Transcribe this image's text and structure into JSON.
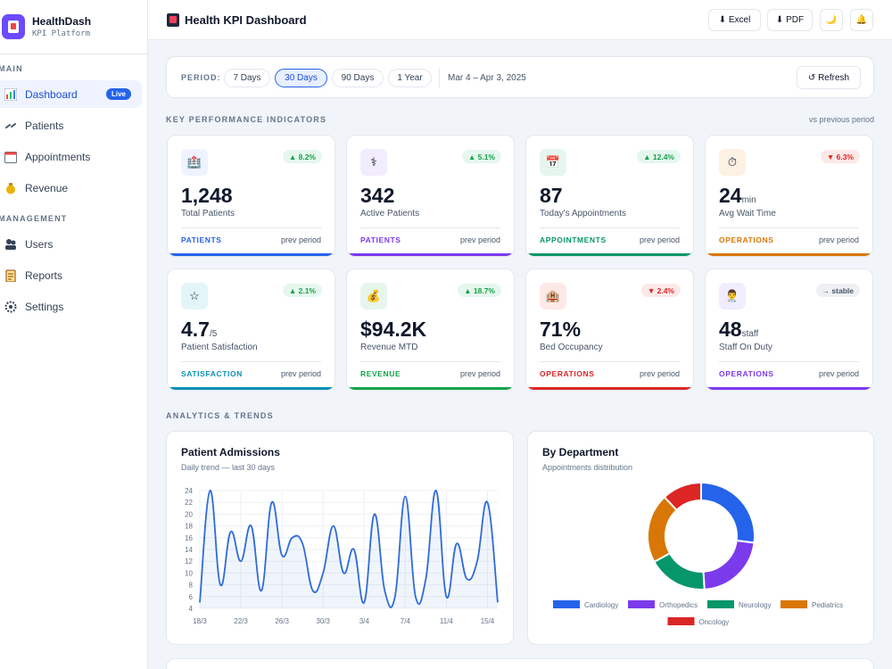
{
  "brand": {
    "name": "HealthDash",
    "subtitle": "KPI Platform"
  },
  "sidebar": {
    "sections": [
      "MAIN",
      "MANAGEMENT"
    ],
    "items": [
      {
        "label": "Dashboard",
        "icon": "chart-bar-icon",
        "badge": "Live"
      },
      {
        "label": "Patients",
        "icon": "patients-icon"
      },
      {
        "label": "Appointments",
        "icon": "calendar-icon"
      },
      {
        "label": "Revenue",
        "icon": "money-bag-icon"
      },
      {
        "label": "Users",
        "icon": "users-icon"
      },
      {
        "label": "Reports",
        "icon": "clipboard-icon"
      },
      {
        "label": "Settings",
        "icon": "gear-icon"
      }
    ]
  },
  "header": {
    "title": "Health KPI Dashboard",
    "excel_label": "⬇ Excel",
    "pdf_label": "⬇ PDF",
    "theme_icon": "🌙",
    "bell_icon": "🔔"
  },
  "period": {
    "label": "PERIOD:",
    "options": [
      "7 Days",
      "30 Days",
      "90 Days",
      "1 Year"
    ],
    "selected": "30 Days",
    "range": "Mar 4 – Apr 3, 2025",
    "refresh_label": "↺ Refresh"
  },
  "kpi_section": {
    "title": "KEY PERFORMANCE INDICATORS",
    "note": "vs previous period"
  },
  "kpis": [
    {
      "value": "1,248",
      "unit": "",
      "label": "Total Patients",
      "delta": "▲ 8.2%",
      "trend": "up",
      "tag": "PATIENTS",
      "prev": "prev period",
      "color": "#2563eb",
      "icon": "🏥",
      "icon_bg": "#eef3ff"
    },
    {
      "value": "342",
      "unit": "",
      "label": "Active Patients",
      "delta": "▲ 5.1%",
      "trend": "up",
      "tag": "PATIENTS",
      "prev": "prev period",
      "color": "#7c3aed",
      "icon": "⚕",
      "icon_bg": "#f1ecfe"
    },
    {
      "value": "87",
      "unit": "",
      "label": "Today's Appointments",
      "delta": "▲ 12.4%",
      "trend": "up",
      "tag": "APPOINTMENTS",
      "prev": "prev period",
      "color": "#059669",
      "icon": "📅",
      "icon_bg": "#e6f6ef"
    },
    {
      "value": "24",
      "unit": "min",
      "label": "Avg Wait Time",
      "delta": "▼ 6.3%",
      "trend": "down",
      "tag": "OPERATIONS",
      "prev": "prev period",
      "color": "#d97706",
      "icon": "⏱",
      "icon_bg": "#fdf1e3"
    },
    {
      "value": "4.7",
      "unit": "/5",
      "label": "Patient Satisfaction",
      "delta": "▲ 2.1%",
      "trend": "up",
      "tag": "SATISFACTION",
      "prev": "prev period",
      "color": "#0891b2",
      "icon": "☆",
      "icon_bg": "#e4f5f8"
    },
    {
      "value": "$94.2K",
      "unit": "",
      "label": "Revenue MTD",
      "delta": "▲ 18.7%",
      "trend": "up",
      "tag": "REVENUE",
      "prev": "prev period",
      "color": "#16a34a",
      "icon": "💰",
      "icon_bg": "#e7f6ec"
    },
    {
      "value": "71%",
      "unit": "",
      "label": "Bed Occupancy",
      "delta": "▼ 2.4%",
      "trend": "down",
      "tag": "OPERATIONS",
      "prev": "prev period",
      "color": "#dc2626",
      "icon": "🏨",
      "icon_bg": "#fde8e8"
    },
    {
      "value": "48",
      "unit": "staff",
      "label": "Staff On Duty",
      "delta": "→ stable",
      "trend": "flat",
      "tag": "OPERATIONS",
      "prev": "prev period",
      "color": "#7c3aed",
      "icon": "👨‍⚕",
      "icon_bg": "#f1ecfe"
    }
  ],
  "analytics_section": {
    "title": "ANALYTICS & TRENDS"
  },
  "admissions": {
    "title": "Patient Admissions",
    "subtitle": "Daily trend — last 30 days"
  },
  "department": {
    "title": "By Department",
    "subtitle": "Appointments distribution"
  },
  "chart_data": [
    {
      "type": "line",
      "title": "Patient Admissions",
      "x": [
        "18/3",
        "19/3",
        "20/3",
        "21/3",
        "22/3",
        "23/3",
        "24/3",
        "25/3",
        "26/3",
        "27/3",
        "28/3",
        "29/3",
        "30/3",
        "31/3",
        "1/4",
        "2/4",
        "3/4",
        "4/4",
        "5/4",
        "6/4",
        "7/4",
        "8/4",
        "9/4",
        "10/4",
        "11/4",
        "12/4",
        "13/4",
        "14/4",
        "15/4",
        "16/4"
      ],
      "xticks": [
        "18/3",
        "22/3",
        "26/3",
        "30/3",
        "3/4",
        "7/4",
        "11/4",
        "15/4"
      ],
      "values": [
        5,
        24,
        8,
        17,
        12,
        18,
        7,
        22,
        13,
        16,
        15,
        7,
        10,
        18,
        10,
        14,
        5,
        20,
        7,
        6,
        23,
        6,
        9,
        24,
        6,
        15,
        9,
        12,
        22,
        5
      ],
      "ylim": [
        4,
        24
      ],
      "yticks": [
        4,
        6,
        8,
        10,
        12,
        14,
        16,
        18,
        20,
        22,
        24
      ],
      "color": "#2f6bd8",
      "grid": true
    },
    {
      "type": "pie",
      "title": "By Department",
      "categories": [
        "Cardiology",
        "Orthopedics",
        "Neurology",
        "Pediatrics",
        "Oncology"
      ],
      "values": [
        27,
        22,
        18,
        21,
        12
      ],
      "colors": [
        "#2563eb",
        "#7c3aed",
        "#059669",
        "#d97706",
        "#dc2626"
      ],
      "legend": "bottom"
    }
  ]
}
